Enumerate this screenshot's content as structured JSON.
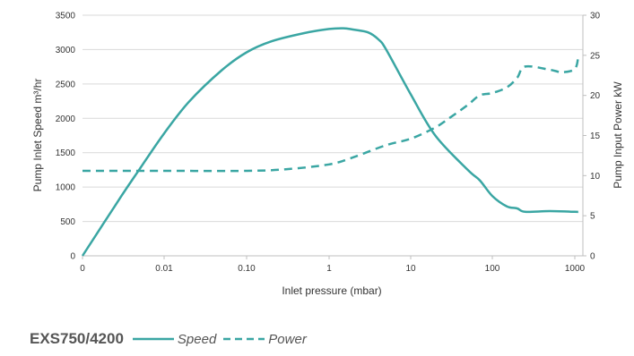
{
  "chart_data": {
    "type": "line",
    "title": "",
    "xlabel": "Inlet pressure (mbar)",
    "ylabel_left": "Pump Inlet Speed m³/hr",
    "ylabel_right": "Pump Input Power kW",
    "x_scale": "log-like (0 then 0.01, 0.10, 1, 10, 100, 1000)",
    "x_tick_labels": [
      "0",
      "0.01",
      "0.10",
      "1",
      "10",
      "100",
      "1000"
    ],
    "y_left_ticks": [
      "0",
      "500",
      "1000",
      "1500",
      "2000",
      "2500",
      "3000",
      "3500"
    ],
    "y_right_ticks": [
      "0",
      "5",
      "10",
      "15",
      "20",
      "25",
      "30"
    ],
    "ylim_left": [
      0,
      3500
    ],
    "ylim_right": [
      0,
      30
    ],
    "grid": "horizontal",
    "legend_position": "bottom-left",
    "legend_title": "EXS750/4200",
    "color": "#3aa6a3",
    "series": [
      {
        "name": "Speed",
        "axis": "left",
        "style": "solid",
        "points": [
          [
            0,
            0
          ],
          [
            0.003,
            870
          ],
          [
            0.005,
            1260
          ],
          [
            0.01,
            1780
          ],
          [
            0.02,
            2240
          ],
          [
            0.05,
            2700
          ],
          [
            0.1,
            2960
          ],
          [
            0.2,
            3120
          ],
          [
            0.5,
            3240
          ],
          [
            1,
            3300
          ],
          [
            1.5,
            3310
          ],
          [
            2,
            3290
          ],
          [
            3,
            3250
          ],
          [
            4,
            3150
          ],
          [
            5,
            3000
          ],
          [
            10,
            2350
          ],
          [
            20,
            1750
          ],
          [
            50,
            1250
          ],
          [
            70,
            1100
          ],
          [
            100,
            870
          ],
          [
            150,
            720
          ],
          [
            200,
            690
          ],
          [
            250,
            640
          ],
          [
            500,
            650
          ],
          [
            1000,
            640
          ],
          [
            1100,
            640
          ]
        ]
      },
      {
        "name": "Power",
        "axis": "right",
        "style": "dashed",
        "points": [
          [
            0,
            10.6
          ],
          [
            0.01,
            10.6
          ],
          [
            0.1,
            10.6
          ],
          [
            0.3,
            10.8
          ],
          [
            1,
            11.4
          ],
          [
            2,
            12.3
          ],
          [
            5,
            13.8
          ],
          [
            10,
            14.6
          ],
          [
            20,
            16.0
          ],
          [
            30,
            17.2
          ],
          [
            50,
            18.8
          ],
          [
            70,
            20.0
          ],
          [
            100,
            20.3
          ],
          [
            150,
            21.0
          ],
          [
            200,
            22.2
          ],
          [
            250,
            23.6
          ],
          [
            500,
            23.2
          ],
          [
            700,
            22.9
          ],
          [
            1000,
            23.3
          ],
          [
            1100,
            24.8
          ]
        ]
      }
    ]
  }
}
